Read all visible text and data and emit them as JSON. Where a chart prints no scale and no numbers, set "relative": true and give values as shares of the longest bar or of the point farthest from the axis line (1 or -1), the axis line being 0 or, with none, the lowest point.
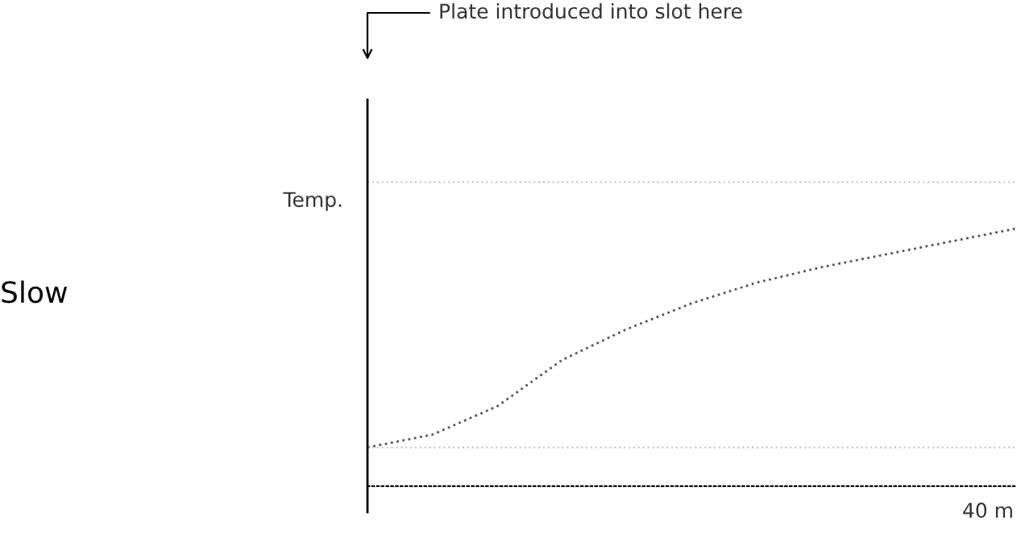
{
  "chart_data": {
    "type": "line",
    "relative": true,
    "title": "Slow",
    "ylabel": "Temp.",
    "categories": [
      null,
      null,
      null,
      null,
      null,
      null,
      null,
      null,
      null,
      null,
      null
    ],
    "series": [
      {
        "color": "#555555",
        "values": [
          0.15,
          0.2,
          0.31,
          0.49,
          0.61,
          0.71,
          0.79,
          0.85,
          0.9,
          0.95,
          1.0
        ]
      }
    ],
    "ref_lines": [
      {
        "axis": "y",
        "value": 0.15,
        "color": "#cccccc",
        "line_style": "dotted"
      },
      {
        "axis": "y",
        "value": 1.18,
        "color": "#cccccc",
        "line_style": "dotted"
      }
    ],
    "annotations": [
      "Plate introduced into slot here",
      "40 m"
    ],
    "line_style": "dotted",
    "marker": "none",
    "grid": false,
    "legend": false
  }
}
